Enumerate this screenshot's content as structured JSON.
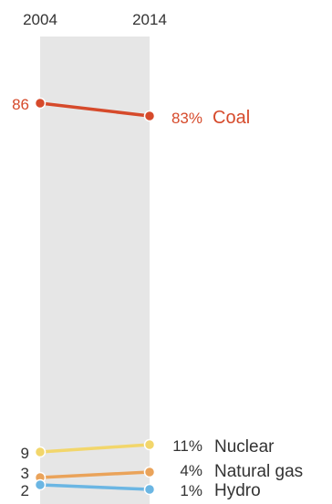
{
  "chart_data": {
    "type": "line",
    "x": [
      "2004",
      "2014"
    ],
    "ylim": [
      0,
      90
    ],
    "grid": false,
    "legend": "none",
    "series": [
      {
        "key": "coal",
        "name": "Coal",
        "values": [
          86,
          83
        ],
        "start_label": "86",
        "end_label": "83%",
        "color": "#d64a2b"
      },
      {
        "key": "nuclear",
        "name": "Nuclear",
        "values": [
          9,
          11
        ],
        "start_label": "9",
        "end_label": "11%",
        "color": "#f2d66b"
      },
      {
        "key": "natural_gas",
        "name": "Natural gas",
        "values": [
          3,
          4
        ],
        "start_label": "3",
        "end_label": "4%",
        "color": "#eaa35a"
      },
      {
        "key": "hydro",
        "name": "Hydro",
        "values": [
          2,
          1
        ],
        "start_label": "2",
        "end_label": "1%",
        "color": "#6bb6e3"
      }
    ]
  },
  "colors": {
    "band": "#e6e6e6",
    "label_text": "#333333",
    "axis_text": "#333333"
  }
}
